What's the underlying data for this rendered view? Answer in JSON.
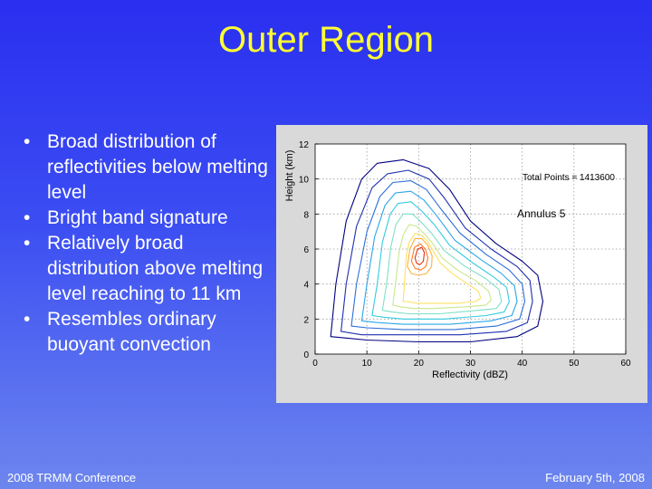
{
  "slide": {
    "title": "Outer Region",
    "bullets": [
      "Broad distribution of reflectivities below melting level",
      "Bright band signature",
      "Relatively broad distribution above melting level reaching to 11 km",
      "Resembles ordinary buoyant convection"
    ],
    "bullet_symbol": "•",
    "footer_left": "2008 TRMM Conference",
    "footer_right": "February 5th, 2008"
  },
  "chart_data": {
    "type": "contour",
    "xlabel": "Reflectivity (dBZ)",
    "ylabel": "Height (km)",
    "xlim": [
      0,
      60
    ],
    "ylim": [
      0,
      12
    ],
    "xticks": [
      0,
      10,
      20,
      30,
      40,
      50,
      60
    ],
    "yticks": [
      0,
      2,
      4,
      6,
      8,
      10,
      12
    ],
    "grid": true,
    "annotations": [
      "Total Points = 1413600",
      "Annulus 5"
    ],
    "contour_colors": [
      "#000080",
      "#1e2fb0",
      "#2b6fd8",
      "#2aa7e8",
      "#32cce0",
      "#7fe0c8",
      "#c8e88a",
      "#ffe060",
      "#ffb040",
      "#ff7a20",
      "#e83010"
    ],
    "contours": [
      {
        "level": 1,
        "points": [
          [
            3,
            1
          ],
          [
            4,
            4
          ],
          [
            6,
            7.6
          ],
          [
            9,
            10
          ],
          [
            12,
            10.9
          ],
          [
            17,
            11.1
          ],
          [
            22,
            10.6
          ],
          [
            26,
            9.4
          ],
          [
            30,
            7.6
          ],
          [
            35,
            6.3
          ],
          [
            40,
            5.3
          ],
          [
            43,
            4.5
          ],
          [
            44,
            3
          ],
          [
            43,
            1.6
          ],
          [
            39,
            1
          ],
          [
            30,
            0.7
          ],
          [
            20,
            0.7
          ],
          [
            10,
            0.8
          ]
        ]
      },
      {
        "level": 2,
        "points": [
          [
            5,
            1.3
          ],
          [
            6,
            4
          ],
          [
            8,
            7.3
          ],
          [
            11,
            9.5
          ],
          [
            14,
            10.3
          ],
          [
            18,
            10.5
          ],
          [
            22,
            10
          ],
          [
            25,
            8.9
          ],
          [
            29,
            7.2
          ],
          [
            34,
            6
          ],
          [
            39,
            5
          ],
          [
            41.5,
            4.2
          ],
          [
            42,
            3
          ],
          [
            41,
            1.8
          ],
          [
            37,
            1.3
          ],
          [
            28,
            1.1
          ],
          [
            18,
            1.1
          ],
          [
            9,
            1.1
          ]
        ]
      },
      {
        "level": 3,
        "points": [
          [
            7,
            1.6
          ],
          [
            8,
            4
          ],
          [
            10,
            7
          ],
          [
            12.5,
            9
          ],
          [
            15,
            9.8
          ],
          [
            18.5,
            9.9
          ],
          [
            21.5,
            9.4
          ],
          [
            24,
            8.4
          ],
          [
            28,
            6.9
          ],
          [
            33,
            5.7
          ],
          [
            37.5,
            4.8
          ],
          [
            40,
            4
          ],
          [
            40.5,
            3
          ],
          [
            39.5,
            2
          ],
          [
            35,
            1.6
          ],
          [
            27,
            1.4
          ],
          [
            17,
            1.4
          ],
          [
            10,
            1.5
          ]
        ]
      },
      {
        "level": 4,
        "points": [
          [
            9,
            1.9
          ],
          [
            10,
            4
          ],
          [
            11.5,
            6.7
          ],
          [
            13.5,
            8.5
          ],
          [
            15.5,
            9.2
          ],
          [
            18.5,
            9.3
          ],
          [
            21,
            8.8
          ],
          [
            23.5,
            7.9
          ],
          [
            27,
            6.5
          ],
          [
            32,
            5.4
          ],
          [
            36,
            4.6
          ],
          [
            38.5,
            3.9
          ],
          [
            39,
            3
          ],
          [
            38,
            2.2
          ],
          [
            34,
            1.9
          ],
          [
            26,
            1.7
          ],
          [
            17,
            1.7
          ],
          [
            12,
            1.8
          ]
        ]
      },
      {
        "level": 5,
        "points": [
          [
            11,
            2.2
          ],
          [
            12,
            4
          ],
          [
            13,
            6.4
          ],
          [
            14.5,
            8
          ],
          [
            16,
            8.6
          ],
          [
            18.5,
            8.7
          ],
          [
            20.5,
            8.2
          ],
          [
            23,
            7.4
          ],
          [
            26,
            6.2
          ],
          [
            30.5,
            5.2
          ],
          [
            34.5,
            4.4
          ],
          [
            37,
            3.8
          ],
          [
            37.5,
            3
          ],
          [
            36.5,
            2.4
          ],
          [
            33,
            2.2
          ],
          [
            25,
            2
          ],
          [
            17,
            2
          ],
          [
            13.5,
            2.1
          ]
        ]
      },
      {
        "level": 6,
        "points": [
          [
            13,
            2.5
          ],
          [
            13.8,
            4
          ],
          [
            14.6,
            6.1
          ],
          [
            15.6,
            7.4
          ],
          [
            17,
            8
          ],
          [
            18.8,
            8
          ],
          [
            20.3,
            7.6
          ],
          [
            22.5,
            6.9
          ],
          [
            25,
            5.9
          ],
          [
            29,
            5
          ],
          [
            33,
            4.3
          ],
          [
            35.5,
            3.7
          ],
          [
            36,
            3
          ],
          [
            35,
            2.6
          ],
          [
            31.5,
            2.5
          ],
          [
            24,
            2.3
          ],
          [
            18,
            2.3
          ],
          [
            15,
            2.4
          ]
        ]
      },
      {
        "level": 7,
        "points": [
          [
            15,
            2.8
          ],
          [
            15.6,
            4.2
          ],
          [
            16.2,
            5.8
          ],
          [
            17,
            6.8
          ],
          [
            18.2,
            7.4
          ],
          [
            19.6,
            7.3
          ],
          [
            21,
            6.9
          ],
          [
            22.8,
            6.3
          ],
          [
            24.5,
            5.5
          ],
          [
            27.5,
            4.8
          ],
          [
            31,
            4.2
          ],
          [
            33.5,
            3.6
          ],
          [
            34,
            3.1
          ],
          [
            33,
            2.8
          ],
          [
            29,
            2.7
          ],
          [
            23,
            2.6
          ],
          [
            19,
            2.6
          ],
          [
            16.5,
            2.7
          ]
        ]
      },
      {
        "level": 8,
        "points": [
          [
            17,
            3
          ],
          [
            17.3,
            4.3
          ],
          [
            17.6,
            5.6
          ],
          [
            18.2,
            6.4
          ],
          [
            19.3,
            6.9
          ],
          [
            20.5,
            6.8
          ],
          [
            21.8,
            6.4
          ],
          [
            23,
            5.8
          ],
          [
            24.2,
            5.2
          ],
          [
            26.5,
            4.6
          ],
          [
            29.5,
            4
          ],
          [
            31.5,
            3.6
          ],
          [
            32,
            3.2
          ],
          [
            31,
            3
          ],
          [
            27.5,
            2.9
          ],
          [
            22.5,
            2.9
          ],
          [
            19.5,
            2.9
          ],
          [
            18,
            3
          ]
        ]
      },
      {
        "level": 9,
        "points": [
          [
            17.8,
            5
          ],
          [
            18.3,
            6
          ],
          [
            19.3,
            6.6
          ],
          [
            20.6,
            6.6
          ],
          [
            21.8,
            6.2
          ],
          [
            22.6,
            5.6
          ],
          [
            22.5,
            5
          ],
          [
            21.5,
            4.6
          ],
          [
            20,
            4.5
          ],
          [
            18.6,
            4.6
          ]
        ]
      },
      {
        "level": 10,
        "points": [
          [
            18.6,
            5.3
          ],
          [
            19.2,
            6.1
          ],
          [
            20.3,
            6.3
          ],
          [
            21.3,
            6
          ],
          [
            21.8,
            5.5
          ],
          [
            21.4,
            5
          ],
          [
            20.4,
            4.8
          ],
          [
            19.3,
            4.9
          ]
        ]
      },
      {
        "level": 11,
        "points": [
          [
            19.3,
            5.5
          ],
          [
            19.8,
            6
          ],
          [
            20.6,
            6.1
          ],
          [
            21.1,
            5.8
          ],
          [
            20.9,
            5.3
          ],
          [
            20.2,
            5.1
          ],
          [
            19.6,
            5.2
          ]
        ]
      }
    ]
  }
}
